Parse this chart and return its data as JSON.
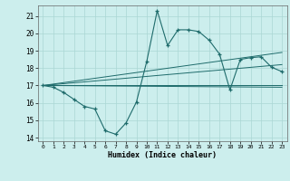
{
  "title": "",
  "xlabel": "Humidex (Indice chaleur)",
  "bg_color": "#cceeed",
  "grid_color": "#aad6d4",
  "line_color": "#1e6b6b",
  "xlim": [
    -0.5,
    23.5
  ],
  "ylim": [
    13.8,
    21.6
  ],
  "yticks": [
    14,
    15,
    16,
    17,
    18,
    19,
    20,
    21
  ],
  "xticks": [
    0,
    1,
    2,
    3,
    4,
    5,
    6,
    7,
    8,
    9,
    10,
    11,
    12,
    13,
    14,
    15,
    16,
    17,
    18,
    19,
    20,
    21,
    22,
    23
  ],
  "main_line_x": [
    0,
    1,
    2,
    3,
    4,
    5,
    6,
    7,
    8,
    9,
    10,
    11,
    12,
    13,
    14,
    15,
    16,
    17,
    18,
    19,
    20,
    21,
    22,
    23
  ],
  "main_line_y": [
    17.0,
    16.9,
    16.6,
    16.2,
    15.8,
    15.65,
    14.4,
    14.2,
    14.85,
    16.05,
    18.4,
    21.3,
    19.3,
    20.2,
    20.2,
    20.1,
    19.6,
    18.8,
    16.75,
    18.5,
    18.6,
    18.65,
    18.05,
    17.8
  ],
  "trend1_x": [
    0,
    23
  ],
  "trend1_y": [
    17.0,
    17.0
  ],
  "trend2_x": [
    0,
    23
  ],
  "trend2_y": [
    17.0,
    16.9
  ],
  "trend3_x": [
    0,
    23
  ],
  "trend3_y": [
    17.0,
    18.2
  ],
  "trend4_x": [
    0,
    23
  ],
  "trend4_y": [
    17.0,
    18.9
  ]
}
